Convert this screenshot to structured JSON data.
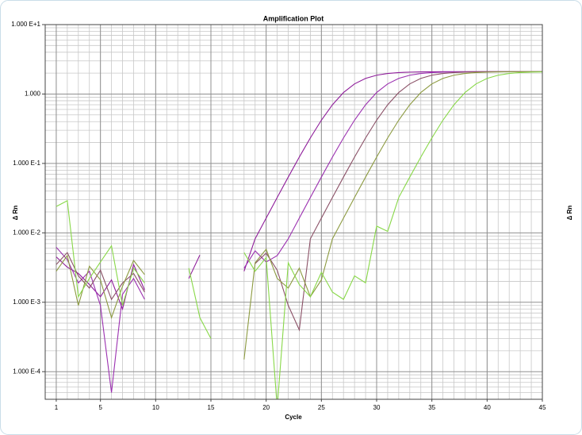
{
  "chart_data": {
    "type": "line",
    "title": "Amplification Plot",
    "xlabel": "Cycle",
    "ylabel": "Δ Rn",
    "ylabel_right": "Δ Rn",
    "log_y": true,
    "grid": true,
    "minor_grid": true,
    "xlim": [
      0,
      45
    ],
    "xticks": [
      1,
      5,
      10,
      15,
      20,
      25,
      30,
      35,
      40,
      45
    ],
    "ylim": [
      4e-05,
      10
    ],
    "yticks": [
      {
        "value": 10,
        "label": "1.000 E+1"
      },
      {
        "value": 1,
        "label": "1.000"
      },
      {
        "value": 0.1,
        "label": "1.000 E-1"
      },
      {
        "value": 0.01,
        "label": "1.000 E-2"
      },
      {
        "value": 0.001,
        "label": "1.000 E-3"
      },
      {
        "value": 0.0001,
        "label": "1.000 E-4"
      }
    ],
    "x": [
      1,
      2,
      3,
      4,
      5,
      6,
      7,
      8,
      9,
      10,
      11,
      12,
      13,
      14,
      15,
      16,
      17,
      18,
      19,
      20,
      21,
      22,
      23,
      24,
      25,
      26,
      27,
      28,
      29,
      30,
      31,
      32,
      33,
      34,
      35,
      36,
      37,
      38,
      39,
      40,
      41,
      42,
      43,
      44,
      45
    ],
    "series": [
      {
        "color": "#8e1c9a",
        "values": [
          0.0045,
          0.0032,
          0.0026,
          0.0018,
          0.0012,
          0.0021,
          0.0008,
          0.0035,
          0.0015,
          null,
          null,
          null,
          0.0022,
          0.0048,
          null,
          null,
          null,
          0.0028,
          0.0082,
          0.0163,
          0.0323,
          0.0636,
          0.1235,
          0.233,
          0.42,
          0.7,
          1.05,
          1.4,
          1.68,
          1.867,
          1.976,
          2.036,
          2.067,
          2.084,
          2.092,
          2.096,
          2.098,
          2.099,
          2.1,
          2.1,
          2.1,
          2.1,
          2.1,
          2.1,
          2.1
        ]
      },
      {
        "color": "#9b30b0",
        "values": [
          0.0062,
          0.0041,
          0.0019,
          0.0028,
          0.0009,
          5e-05,
          0.0013,
          0.0022,
          0.0011,
          null,
          null,
          null,
          null,
          null,
          null,
          null,
          null,
          0.0031,
          0.0055,
          0.0038,
          0.0047,
          0.0082,
          0.0163,
          0.0323,
          0.0636,
          0.1235,
          0.233,
          0.42,
          0.7,
          1.05,
          1.4,
          1.68,
          1.867,
          1.976,
          2.036,
          2.067,
          2.084,
          2.092,
          2.096,
          2.098,
          2.099,
          2.1,
          2.1,
          2.1,
          2.1
        ]
      },
      {
        "color": "#8a5066",
        "values": [
          0.0035,
          0.0052,
          0.0024,
          0.0016,
          0.0029,
          0.0011,
          0.0019,
          0.0026,
          0.0014,
          null,
          null,
          null,
          null,
          null,
          null,
          null,
          null,
          null,
          0.0036,
          0.0051,
          0.0029,
          0.0009,
          0.0004,
          0.0082,
          0.0163,
          0.0323,
          0.0636,
          0.1235,
          0.233,
          0.42,
          0.7,
          1.05,
          1.4,
          1.68,
          1.867,
          1.976,
          2.036,
          2.067,
          2.084,
          2.092,
          2.096,
          2.098,
          2.099,
          2.1,
          2.1
        ]
      },
      {
        "color": "#8c9a40",
        "values": [
          0.0028,
          0.0047,
          0.0009,
          0.0033,
          0.0021,
          0.0006,
          0.0017,
          0.004,
          0.0025,
          null,
          null,
          null,
          null,
          null,
          null,
          null,
          null,
          0.00015,
          0.0037,
          0.0058,
          0.0022,
          0.0016,
          0.0031,
          0.0012,
          0.0021,
          0.0082,
          0.0163,
          0.0323,
          0.0636,
          0.1235,
          0.233,
          0.42,
          0.7,
          1.05,
          1.4,
          1.68,
          1.867,
          1.976,
          2.036,
          2.067,
          2.084,
          2.092,
          2.096,
          2.098,
          2.099
        ]
      },
      {
        "color": "#88d848",
        "values": [
          0.024,
          0.029,
          0.0012,
          0.0022,
          0.0038,
          0.0065,
          0.0009,
          0.0031,
          0.0019,
          null,
          null,
          null,
          0.0031,
          0.0006,
          0.0003,
          null,
          null,
          0.0052,
          0.0028,
          0.0044,
          3e-05,
          0.0037,
          0.0018,
          0.0012,
          0.0027,
          0.0014,
          0.0011,
          0.0024,
          0.0019,
          0.0125,
          0.0105,
          0.0323,
          0.0636,
          0.1235,
          0.233,
          0.42,
          0.7,
          1.05,
          1.4,
          1.68,
          1.867,
          1.976,
          2.036,
          2.067,
          2.084
        ]
      }
    ]
  }
}
